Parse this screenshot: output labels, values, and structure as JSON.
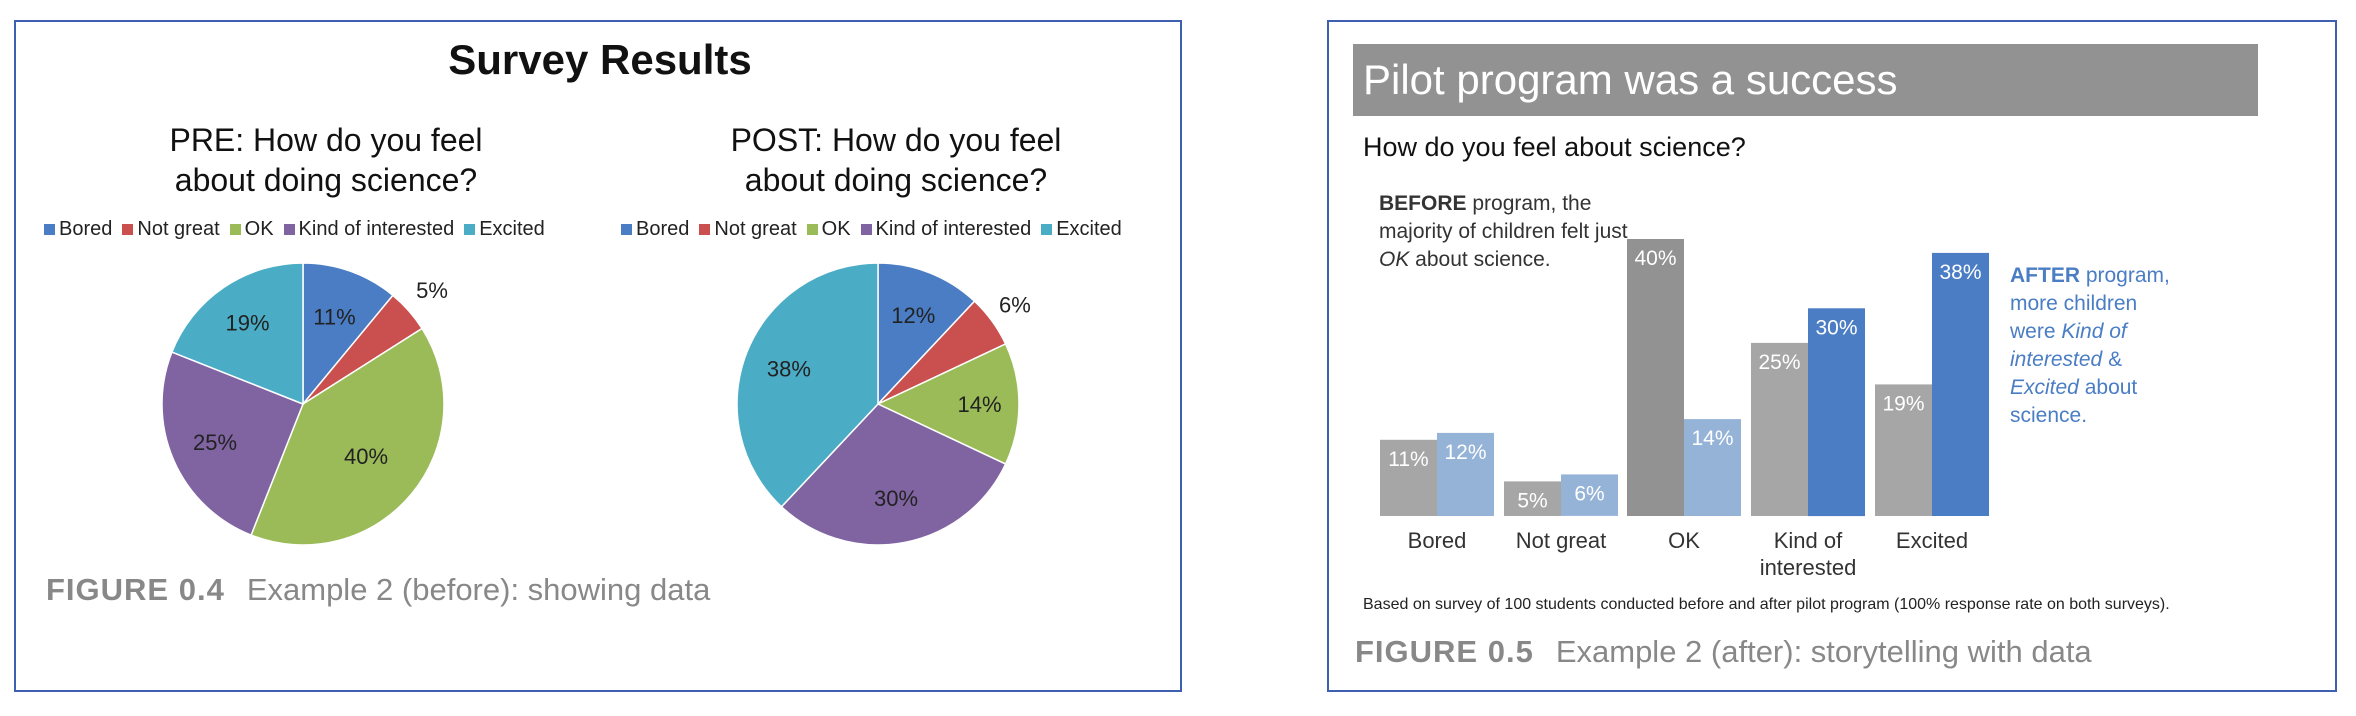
{
  "left_panel": {
    "title": "Survey Results",
    "pre_title_line1": "PRE: How do you feel",
    "pre_title_line2": "about doing science?",
    "post_title_line1": "POST: How do you feel",
    "post_title_line2": "about doing science?",
    "figure_number": "FIGURE 0.4",
    "figure_caption": "Example 2 (before): showing data"
  },
  "right_panel": {
    "banner_title": "Pilot program was a success",
    "question": "How do you feel about science?",
    "before_note": {
      "bold": "BEFORE",
      "part1": " program, the majority of children felt just ",
      "italic": "OK",
      "part2": " about science."
    },
    "after_note": {
      "bold": "AFTER",
      "part1": " program, more children were ",
      "italic1": "Kind of interested",
      "part2": " & ",
      "italic2": "Excited",
      "part3": " about science."
    },
    "footnote": "Based on survey of 100 students conducted before and after pilot program (100% response rate on both surveys).",
    "figure_number": "FIGURE 0.5",
    "figure_caption": "Example 2 (after): storytelling with data"
  },
  "colors": {
    "bored": "#4a7dc4",
    "not_great": "#c9504e",
    "ok": "#9bbb59",
    "kind_of_interested": "#8064a2",
    "excited": "#4bacc6",
    "bar_before": "#a6a6a6",
    "bar_before_ok": "#929292",
    "bar_after": "#95b3d7",
    "bar_after_highlight": "#4a7dc4",
    "after_text": "#4a7dc4"
  },
  "chart_data": [
    {
      "type": "pie",
      "title": "PRE: How do you feel about doing science?",
      "legend_position": "top",
      "categories": [
        "Bored",
        "Not great",
        "OK",
        "Kind of interested",
        "Excited"
      ],
      "values": [
        11,
        5,
        40,
        25,
        19
      ],
      "labels": [
        "11%",
        "5%",
        "40%",
        "25%",
        "19%"
      ]
    },
    {
      "type": "pie",
      "title": "POST: How do you feel about doing science?",
      "legend_position": "top",
      "categories": [
        "Bored",
        "Not great",
        "OK",
        "Kind of interested",
        "Excited"
      ],
      "values": [
        12,
        6,
        14,
        30,
        38
      ],
      "labels": [
        "12%",
        "6%",
        "14%",
        "30%",
        "38%"
      ]
    },
    {
      "type": "bar",
      "title": "Pilot program was a success",
      "subtitle": "How do you feel about science?",
      "categories": [
        "Bored",
        "Not great",
        "OK",
        "Kind of interested",
        "Excited"
      ],
      "category_labels": [
        [
          "Bored"
        ],
        [
          "Not great"
        ],
        [
          "OK"
        ],
        [
          "Kind of",
          "interested"
        ],
        [
          "Excited"
        ]
      ],
      "series": [
        {
          "values": [
            11,
            5,
            40,
            25,
            19
          ],
          "labels": [
            "11%",
            "5%",
            "40%",
            "25%",
            "19%"
          ]
        },
        {
          "values": [
            12,
            6,
            14,
            30,
            38
          ],
          "labels": [
            "12%",
            "6%",
            "14%",
            "30%",
            "38%"
          ]
        }
      ],
      "ylim": [
        0,
        40
      ],
      "grid": false
    }
  ]
}
